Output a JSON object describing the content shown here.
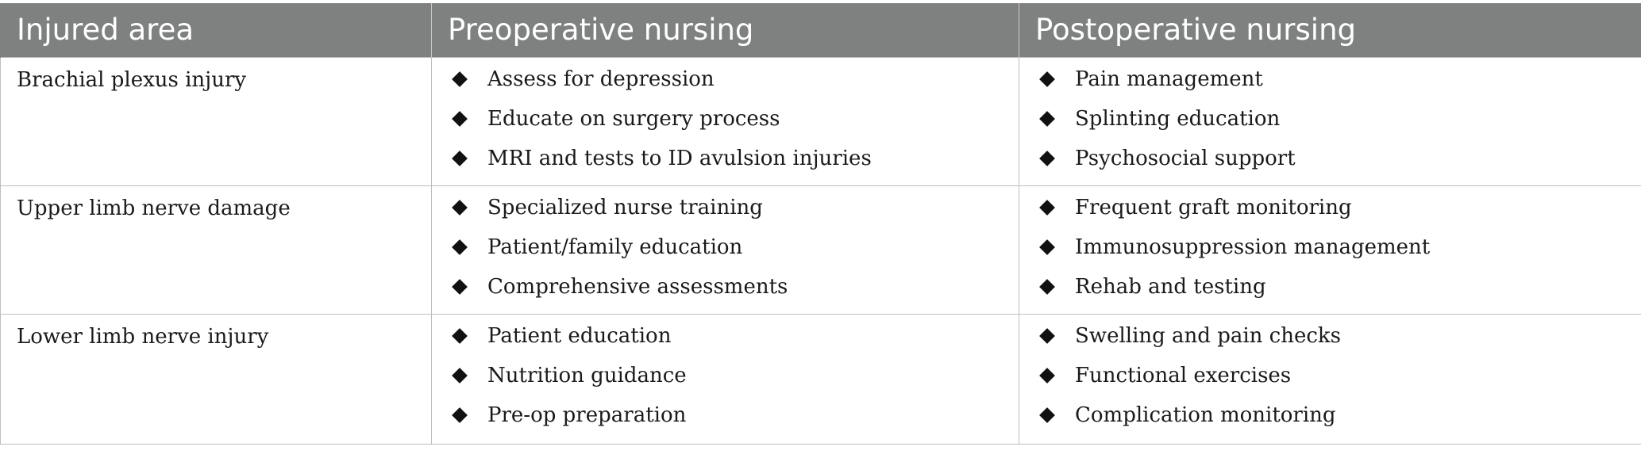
{
  "table": {
    "headers": [
      "Injured area",
      "Preoperative nursing",
      "Postoperative nursing"
    ],
    "rows": [
      {
        "area": "Brachial plexus injury",
        "pre": [
          "Assess for depression",
          "Educate on surgery process",
          "MRI and tests to ID avulsion injuries"
        ],
        "post": [
          "Pain management",
          "Splinting education",
          "Psychosocial support"
        ]
      },
      {
        "area": "Upper limb nerve damage",
        "pre": [
          "Specialized nurse training",
          "Patient/family education",
          "Comprehensive assessments"
        ],
        "post": [
          "Frequent graft monitoring",
          "Immunosuppression management",
          "Rehab and testing"
        ]
      },
      {
        "area": "Lower limb nerve injury",
        "pre": [
          "Patient education",
          "Nutrition guidance",
          "Pre-op preparation"
        ],
        "post": [
          "Swelling and pain checks",
          "Functional exercises",
          "Complication monitoring"
        ]
      }
    ]
  },
  "colors": {
    "header_bg": "#7f8180",
    "header_text": "#ffffff",
    "border": "#bdbdbd"
  },
  "icons": {
    "bullet": "diamond-bullet-icon"
  }
}
